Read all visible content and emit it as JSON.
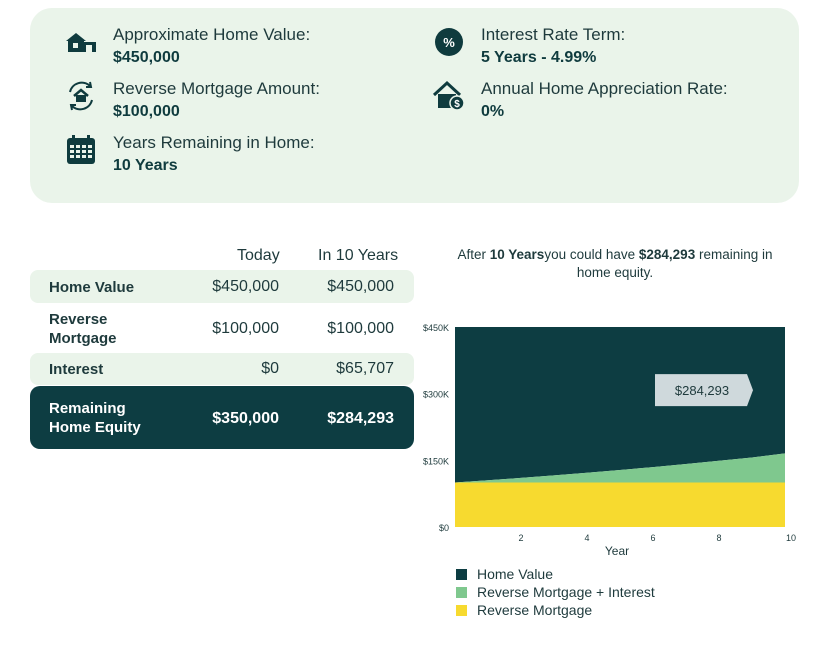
{
  "summary": {
    "home_value": {
      "label": "Approximate Home Value:",
      "value": "$450,000",
      "icon": "house-icon"
    },
    "reverse_mortgage": {
      "label": "Reverse Mortgage Amount:",
      "value": "$100,000",
      "icon": "reverse-house-icon"
    },
    "years_remaining": {
      "label": "Years Remaining in Home:",
      "value": "10 Years",
      "icon": "calendar-icon"
    },
    "interest_rate": {
      "label": "Interest Rate Term:",
      "value": "5 Years - 4.99%",
      "icon": "percent-icon"
    },
    "appreciation": {
      "label": "Annual Home Appreciation Rate:",
      "value": "0%",
      "icon": "house-dollar-icon"
    }
  },
  "table": {
    "columns": [
      "Today",
      "In 10 Years"
    ],
    "rows": [
      {
        "label": "Home Value",
        "today": "$450,000",
        "future": "$450,000"
      },
      {
        "label": "Reverse Mortgage",
        "today": "$100,000",
        "future": "$100,000"
      },
      {
        "label": "Interest",
        "today": "$0",
        "future": "$65,707"
      },
      {
        "label": "Remaining Home Equity",
        "today": "$350,000",
        "future": "$284,293"
      }
    ]
  },
  "caption": {
    "prefix": "After ",
    "years": "10 Years",
    "middle": "you could have ",
    "amount": "$284,293",
    "suffix": " remaining in home equity."
  },
  "colors": {
    "home_value": "#0d3d42",
    "rm_interest": "#7fc88e",
    "reverse_mortgage": "#f7da2f",
    "panel": "#eaf4ea",
    "callout": "#cfd9dc"
  },
  "chart_data": {
    "type": "area",
    "x": [
      0,
      1,
      2,
      3,
      4,
      5,
      6,
      7,
      8,
      9,
      10
    ],
    "xlabel": "Year",
    "xticks": [
      2,
      4,
      6,
      8,
      10
    ],
    "ylim": [
      0,
      450000
    ],
    "yticks": [
      0,
      150000,
      300000,
      450000
    ],
    "ytick_labels": [
      "$0",
      "$150K",
      "$300K",
      "$450K"
    ],
    "series": [
      {
        "name": "Home Value",
        "values": [
          450000,
          450000,
          450000,
          450000,
          450000,
          450000,
          450000,
          450000,
          450000,
          450000,
          450000
        ]
      },
      {
        "name": "Reverse Mortgage + Interest",
        "values": [
          100000,
          105116,
          110491,
          116137,
          122067,
          128296,
          134838,
          141709,
          148925,
          156503,
          165707
        ]
      },
      {
        "name": "Reverse Mortgage",
        "values": [
          100000,
          100000,
          100000,
          100000,
          100000,
          100000,
          100000,
          100000,
          100000,
          100000,
          100000
        ]
      }
    ],
    "annotation": "$284,293",
    "legend": "bottom-left"
  }
}
